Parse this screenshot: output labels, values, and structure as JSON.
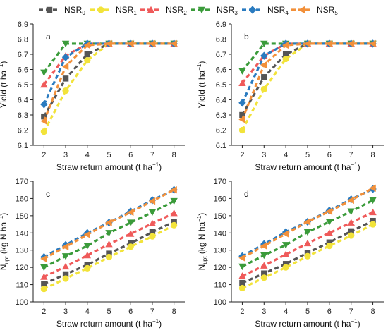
{
  "chart_data": {
    "type": "line",
    "legend": {
      "placement": "top",
      "entries": [
        {
          "base": "NSR",
          "sub": "0",
          "color": "#555555",
          "marker": "square"
        },
        {
          "base": "NSR",
          "sub": "1",
          "color": "#f2e33a",
          "marker": "circle"
        },
        {
          "base": "NSR",
          "sub": "2",
          "color": "#ef5a5a",
          "marker": "triangle-up"
        },
        {
          "base": "NSR",
          "sub": "3",
          "color": "#3a9b3a",
          "marker": "triangle-down"
        },
        {
          "base": "NSR",
          "sub": "4",
          "color": "#2a7bc0",
          "marker": "diamond"
        },
        {
          "base": "NSR",
          "sub": "5",
          "color": "#f2903a",
          "marker": "triangle-left"
        }
      ]
    },
    "x": [
      2,
      3,
      4,
      5,
      6,
      7,
      8
    ],
    "xlabel": {
      "main": "Straw return amount (t ha",
      "sup": "−1",
      "end": ")"
    },
    "panels": [
      {
        "letter": "a",
        "ylabel": {
          "main": "Yield (t ha",
          "sup": "−1",
          "end": ")"
        },
        "ylim": [
          6.1,
          6.9
        ],
        "yticks": [
          "6.1",
          "6.2",
          "6.3",
          "6.4",
          "6.5",
          "6.6",
          "6.7",
          "6.8",
          "6.9"
        ],
        "series": [
          {
            "values": [
              6.29,
              6.54,
              6.7,
              6.77,
              6.77,
              6.77,
              6.77
            ]
          },
          {
            "values": [
              6.19,
              6.46,
              6.66,
              6.77,
              6.77,
              6.77,
              6.77
            ]
          },
          {
            "values": [
              6.5,
              6.69,
              6.77,
              6.77,
              6.77,
              6.77,
              6.77
            ]
          },
          {
            "values": [
              6.58,
              6.77,
              6.77,
              6.77,
              6.77,
              6.77,
              6.77
            ]
          },
          {
            "values": [
              6.37,
              6.68,
              6.77,
              6.77,
              6.77,
              6.77,
              6.77
            ]
          },
          {
            "values": [
              6.26,
              6.62,
              6.76,
              6.77,
              6.77,
              6.77,
              6.77
            ]
          }
        ]
      },
      {
        "letter": "b",
        "ylabel": {
          "main": "Yield (t ha",
          "sup": "−1",
          "end": ")"
        },
        "ylim": [
          6.1,
          6.9
        ],
        "yticks": [
          "6.1",
          "6.2",
          "6.3",
          "6.4",
          "6.5",
          "6.6",
          "6.7",
          "6.8",
          "6.9"
        ],
        "series": [
          {
            "values": [
              6.3,
              6.55,
              6.7,
              6.77,
              6.77,
              6.77,
              6.77
            ]
          },
          {
            "values": [
              6.2,
              6.47,
              6.67,
              6.77,
              6.77,
              6.77,
              6.77
            ]
          },
          {
            "values": [
              6.51,
              6.69,
              6.77,
              6.77,
              6.77,
              6.77,
              6.77
            ]
          },
          {
            "values": [
              6.59,
              6.77,
              6.77,
              6.77,
              6.77,
              6.77,
              6.77
            ]
          },
          {
            "values": [
              6.38,
              6.69,
              6.77,
              6.77,
              6.77,
              6.77,
              6.77
            ]
          },
          {
            "values": [
              6.27,
              6.63,
              6.76,
              6.77,
              6.77,
              6.77,
              6.77
            ]
          }
        ]
      },
      {
        "letter": "c",
        "ylabel": {
          "main": "N",
          "sub": "upt",
          "end": " (kg N ha",
          "sup": "−1",
          "end2": ")"
        },
        "ylim": [
          100,
          170
        ],
        "yticks": [
          "100",
          "110",
          "120",
          "130",
          "140",
          "150",
          "160",
          "170"
        ],
        "series": [
          {
            "values": [
              110.5,
              116,
              121.5,
              128,
              134,
              140.5,
              146.5
            ]
          },
          {
            "values": [
              107.5,
              113.5,
              119.5,
              126,
              132,
              138,
              144.5
            ]
          },
          {
            "values": [
              114.5,
              120.5,
              127,
              133.5,
              139.5,
              145.5,
              151.5
            ]
          },
          {
            "values": [
              120,
              126.5,
              132.5,
              140,
              146,
              152,
              158.5
            ]
          },
          {
            "values": [
              126,
              133,
              140,
              146,
              152.5,
              159,
              165
            ]
          },
          {
            "values": [
              125,
              132,
              139,
              146,
              152,
              158.5,
              165
            ]
          }
        ]
      },
      {
        "letter": "d",
        "ylabel": {
          "main": "N",
          "sub": "upt",
          "end": " (kg N ha",
          "sup": "−1",
          "end2": ")"
        },
        "ylim": [
          100,
          170
        ],
        "yticks": [
          "100",
          "110",
          "120",
          "130",
          "140",
          "150",
          "160",
          "170"
        ],
        "series": [
          {
            "values": [
              111,
              116.5,
              122,
              128.5,
              134.5,
              141,
              147
            ]
          },
          {
            "values": [
              108,
              114,
              120,
              126.5,
              132.5,
              138.5,
              145
            ]
          },
          {
            "values": [
              115,
              121,
              127.5,
              134,
              140,
              146,
              152
            ]
          },
          {
            "values": [
              120.5,
              127,
              133,
              140.5,
              146.5,
              152.5,
              159
            ]
          },
          {
            "values": [
              126.5,
              133.5,
              140.5,
              146.5,
              153,
              159.5,
              165.5
            ]
          },
          {
            "values": [
              125.5,
              132.5,
              139.5,
              146.5,
              152.5,
              159,
              166
            ]
          }
        ]
      }
    ]
  }
}
